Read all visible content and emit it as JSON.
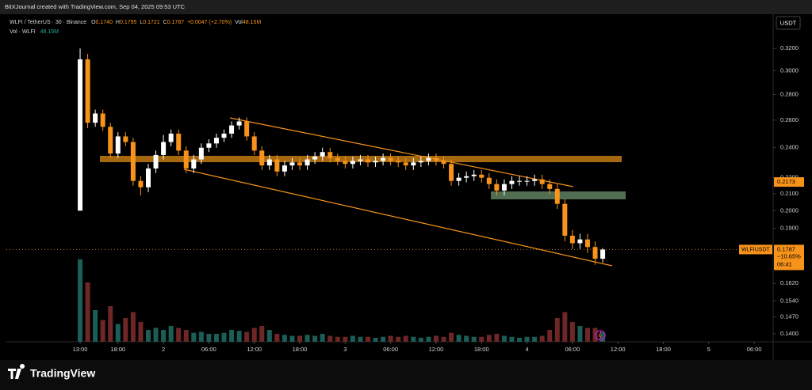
{
  "header": {
    "watermark": "BitXJournal created with TradingView.com, Sep 04, 2025 09:53 UTC",
    "symbol": "WLFI / TetherUS · 30 · Binance",
    "ohlc": [
      {
        "label": "O",
        "value": "0.1740"
      },
      {
        "label": "H",
        "value": "0.1795"
      },
      {
        "label": "L",
        "value": "0.1721"
      },
      {
        "label": "C",
        "value": "0.1787"
      }
    ],
    "change": "+0.0047 (+2.70%)",
    "vol_label": "Vol",
    "vol_value": "48.15M",
    "volume_legend": "Vol · WLFI",
    "volume_legend_value": "48.15M",
    "currency_button": "USDT",
    "logo": "TradingView"
  },
  "chart_data": {
    "type": "candlestick",
    "log_scale": true,
    "x": [
      0,
      1,
      2,
      3,
      4,
      5,
      6,
      7,
      8,
      9,
      10,
      11,
      12,
      13,
      14,
      15,
      16,
      17,
      18,
      19,
      20,
      21,
      22,
      23,
      24,
      25,
      26,
      27,
      28,
      29,
      30,
      31,
      32,
      33,
      34,
      35,
      36,
      37,
      38,
      39,
      40,
      41,
      42,
      43,
      44,
      45,
      46,
      47,
      48,
      49,
      50,
      51,
      52,
      53,
      54,
      55,
      56,
      57,
      58,
      59,
      60,
      61,
      62,
      63,
      64,
      65,
      66,
      67,
      68,
      69
    ],
    "open": [
      0.2,
      0.31,
      0.258,
      0.265,
      0.255,
      0.236,
      0.248,
      0.244,
      0.218,
      0.214,
      0.226,
      0.235,
      0.244,
      0.25,
      0.238,
      0.226,
      0.232,
      0.24,
      0.243,
      0.247,
      0.25,
      0.256,
      0.259,
      0.248,
      0.238,
      0.228,
      0.232,
      0.224,
      0.228,
      0.23,
      0.228,
      0.232,
      0.234,
      0.237,
      0.233,
      0.231,
      0.229,
      0.231,
      0.232,
      0.23,
      0.231,
      0.233,
      0.231,
      0.23,
      0.228,
      0.23,
      0.231,
      0.233,
      0.231,
      0.229,
      0.218,
      0.22,
      0.221,
      0.222,
      0.22,
      0.216,
      0.212,
      0.216,
      0.218,
      0.218,
      0.218,
      0.219,
      0.216,
      0.213,
      0.204,
      0.186,
      0.182,
      0.184,
      0.18,
      0.174
    ],
    "high": [
      0.32,
      0.315,
      0.268,
      0.268,
      0.258,
      0.251,
      0.251,
      0.247,
      0.221,
      0.229,
      0.238,
      0.249,
      0.253,
      0.253,
      0.241,
      0.235,
      0.243,
      0.246,
      0.25,
      0.253,
      0.259,
      0.262,
      0.262,
      0.251,
      0.241,
      0.235,
      0.235,
      0.231,
      0.233,
      0.233,
      0.235,
      0.237,
      0.24,
      0.24,
      0.236,
      0.234,
      0.234,
      0.235,
      0.235,
      0.234,
      0.236,
      0.236,
      0.234,
      0.233,
      0.233,
      0.234,
      0.236,
      0.236,
      0.234,
      0.232,
      0.223,
      0.224,
      0.225,
      0.225,
      0.223,
      0.219,
      0.219,
      0.221,
      0.221,
      0.221,
      0.222,
      0.222,
      0.219,
      0.216,
      0.207,
      0.189,
      0.187,
      0.187,
      0.183,
      0.1795
    ],
    "low": [
      0.2,
      0.254,
      0.255,
      0.252,
      0.233,
      0.233,
      0.241,
      0.215,
      0.209,
      0.211,
      0.223,
      0.232,
      0.241,
      0.235,
      0.223,
      0.223,
      0.229,
      0.237,
      0.24,
      0.244,
      0.247,
      0.253,
      0.245,
      0.235,
      0.225,
      0.225,
      0.221,
      0.221,
      0.225,
      0.225,
      0.225,
      0.229,
      0.231,
      0.23,
      0.228,
      0.226,
      0.226,
      0.228,
      0.227,
      0.227,
      0.228,
      0.228,
      0.227,
      0.225,
      0.225,
      0.227,
      0.228,
      0.228,
      0.226,
      0.215,
      0.215,
      0.217,
      0.218,
      0.217,
      0.213,
      0.209,
      0.209,
      0.213,
      0.215,
      0.215,
      0.215,
      0.213,
      0.21,
      0.201,
      0.183,
      0.179,
      0.179,
      0.177,
      0.171,
      0.1721
    ],
    "close": [
      0.31,
      0.258,
      0.265,
      0.255,
      0.236,
      0.248,
      0.244,
      0.218,
      0.214,
      0.226,
      0.235,
      0.244,
      0.25,
      0.238,
      0.226,
      0.232,
      0.24,
      0.243,
      0.247,
      0.25,
      0.256,
      0.259,
      0.248,
      0.238,
      0.228,
      0.232,
      0.224,
      0.228,
      0.23,
      0.228,
      0.232,
      0.234,
      0.237,
      0.233,
      0.231,
      0.229,
      0.231,
      0.232,
      0.23,
      0.231,
      0.233,
      0.231,
      0.23,
      0.228,
      0.23,
      0.231,
      0.233,
      0.231,
      0.229,
      0.218,
      0.22,
      0.221,
      0.222,
      0.22,
      0.216,
      0.212,
      0.216,
      0.218,
      0.218,
      0.218,
      0.219,
      0.216,
      0.213,
      0.204,
      0.186,
      0.182,
      0.184,
      0.18,
      0.174,
      0.1787
    ],
    "volume": [
      417,
      300,
      160,
      110,
      180,
      90,
      120,
      150,
      100,
      60,
      70,
      60,
      80,
      70,
      60,
      45,
      50,
      40,
      40,
      45,
      60,
      55,
      50,
      70,
      80,
      60,
      40,
      35,
      30,
      30,
      35,
      30,
      40,
      30,
      25,
      25,
      30,
      25,
      25,
      20,
      25,
      30,
      25,
      30,
      25,
      20,
      25,
      30,
      25,
      45,
      35,
      30,
      25,
      25,
      35,
      40,
      30,
      25,
      20,
      25,
      25,
      30,
      60,
      120,
      150,
      100,
      80,
      70,
      70,
      48.15
    ],
    "volume_ylim": [
      0,
      420
    ],
    "up_color": "#ffffff",
    "down_color": "#f7931a",
    "volume_up_color": "#1b5e57",
    "volume_down_color": "#6e2626",
    "xlim": [
      -9.74,
      91.5
    ],
    "xticks": [
      {
        "value": 0,
        "label": "13:00"
      },
      {
        "value": 5,
        "label": "18:00"
      },
      {
        "value": 11,
        "label": "2"
      },
      {
        "value": 17,
        "label": "06:00"
      },
      {
        "value": 23,
        "label": "12:00"
      },
      {
        "value": 29,
        "label": "18:00"
      },
      {
        "value": 35,
        "label": "3"
      },
      {
        "value": 41,
        "label": "06:00"
      },
      {
        "value": 47,
        "label": "12:00"
      },
      {
        "value": 53,
        "label": "18:00"
      },
      {
        "value": 59,
        "label": "4"
      },
      {
        "value": 65,
        "label": "06:00"
      },
      {
        "value": 71,
        "label": "12:00"
      },
      {
        "value": 77,
        "label": "18:00"
      },
      {
        "value": 83,
        "label": "5"
      },
      {
        "value": 89,
        "label": "06:00"
      }
    ],
    "ylim": [
      0.1368,
      0.3517
    ],
    "yticks": [
      {
        "value": 0.32,
        "label": "0.3200"
      },
      {
        "value": 0.3,
        "label": "0.3000"
      },
      {
        "value": 0.28,
        "label": "0.2800"
      },
      {
        "value": 0.26,
        "label": "0.2600"
      },
      {
        "value": 0.24,
        "label": "0.2400"
      },
      {
        "value": 0.22,
        "label": "0.2200"
      },
      {
        "value": 0.21,
        "label": "0.2100"
      },
      {
        "value": 0.2,
        "label": "0.2000"
      },
      {
        "value": 0.19,
        "label": "0.1900"
      },
      {
        "value": 0.162,
        "label": "0.1620"
      },
      {
        "value": 0.154,
        "label": "0.1540"
      },
      {
        "value": 0.147,
        "label": "0.1470"
      },
      {
        "value": 0.14,
        "label": "0.1400"
      }
    ],
    "price_marks": [
      {
        "value": 0.2173,
        "label": "0.2173"
      }
    ],
    "last_price": {
      "symbol": "WLFIUSDT",
      "value": 0.1787,
      "label": "0.1787",
      "change": "−10.65%",
      "countdown": "06:41"
    }
  }
}
